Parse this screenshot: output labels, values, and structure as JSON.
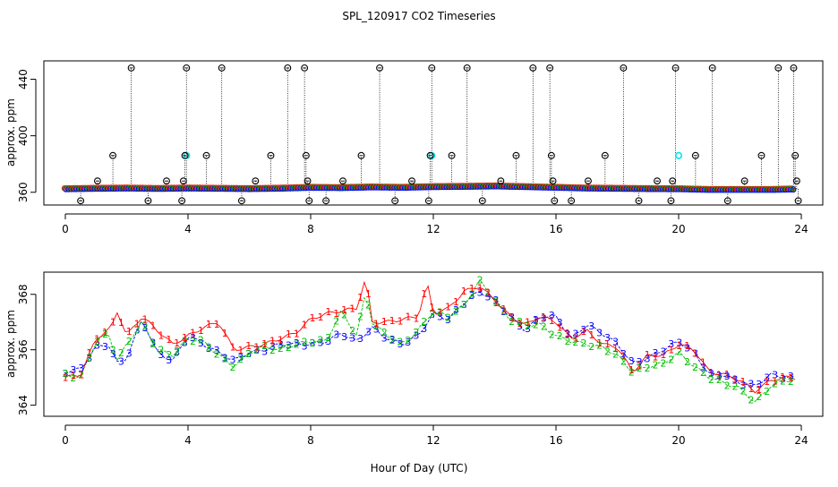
{
  "figure": {
    "title": "SPL_120917  CO2 Timeseries",
    "shared_xlabel": "Hour of Day (UTC)"
  },
  "colors": {
    "series_1": "#ff0000",
    "series_2": "#00c000",
    "series_3": "#0000ff",
    "highlight": "#00e5ee",
    "outlier": "#000000"
  },
  "chart_data": [
    {
      "type": "scatter",
      "name": "top-panel",
      "ylabel": "approx. ppm",
      "xlim": [
        -0.7,
        24.7
      ],
      "ylim": [
        351,
        453
      ],
      "xticks": [
        0,
        4,
        8,
        12,
        16,
        20,
        24
      ],
      "yticks": [
        360,
        400,
        440
      ],
      "grid": false,
      "baseline": [
        [
          0,
          362.5
        ],
        [
          1,
          362.8
        ],
        [
          2,
          363
        ],
        [
          3,
          362.7
        ],
        [
          4,
          363
        ],
        [
          5,
          362.8
        ],
        [
          6,
          362.6
        ],
        [
          7,
          362.9
        ],
        [
          8,
          363.5
        ],
        [
          9,
          363.3
        ],
        [
          10,
          363.8
        ],
        [
          11,
          363.5
        ],
        [
          12,
          364
        ],
        [
          13,
          364.2
        ],
        [
          14,
          364.5
        ],
        [
          15,
          364
        ],
        [
          16,
          363.5
        ],
        [
          17,
          363
        ],
        [
          18,
          362.8
        ],
        [
          19,
          362.6
        ],
        [
          20,
          362.5
        ],
        [
          21,
          362
        ],
        [
          22,
          362
        ],
        [
          23,
          362
        ],
        [
          23.7,
          362.3
        ]
      ],
      "outlier_points": [
        [
          0.5,
          354
        ],
        [
          1.05,
          368
        ],
        [
          1.55,
          386
        ],
        [
          2.15,
          448
        ],
        [
          2.7,
          354
        ],
        [
          3.3,
          368
        ],
        [
          3.8,
          354
        ],
        [
          3.85,
          368
        ],
        [
          3.9,
          386
        ],
        [
          3.95,
          448
        ],
        [
          4.6,
          386
        ],
        [
          5.1,
          448
        ],
        [
          5.75,
          354
        ],
        [
          6.2,
          368
        ],
        [
          6.7,
          386
        ],
        [
          7.25,
          448
        ],
        [
          7.8,
          448
        ],
        [
          7.85,
          386
        ],
        [
          7.9,
          368
        ],
        [
          7.95,
          354
        ],
        [
          8.5,
          354
        ],
        [
          9.05,
          368
        ],
        [
          9.65,
          386
        ],
        [
          10.25,
          448
        ],
        [
          10.75,
          354
        ],
        [
          11.3,
          368
        ],
        [
          11.85,
          354
        ],
        [
          11.9,
          386
        ],
        [
          11.95,
          448
        ],
        [
          12.6,
          386
        ],
        [
          13.1,
          448
        ],
        [
          13.6,
          354
        ],
        [
          14.2,
          368
        ],
        [
          14.7,
          386
        ],
        [
          15.25,
          448
        ],
        [
          15.8,
          448
        ],
        [
          15.85,
          386
        ],
        [
          15.9,
          368
        ],
        [
          15.95,
          354
        ],
        [
          16.5,
          354
        ],
        [
          17.05,
          368
        ],
        [
          17.6,
          386
        ],
        [
          18.2,
          448
        ],
        [
          18.7,
          354
        ],
        [
          19.3,
          368
        ],
        [
          19.75,
          354
        ],
        [
          19.8,
          368
        ],
        [
          19.9,
          448
        ],
        [
          20.55,
          386
        ],
        [
          21.1,
          448
        ],
        [
          21.6,
          354
        ],
        [
          22.15,
          368
        ],
        [
          22.7,
          386
        ],
        [
          23.25,
          448
        ],
        [
          23.75,
          448
        ],
        [
          23.8,
          386
        ],
        [
          23.85,
          368
        ],
        [
          23.9,
          354
        ]
      ],
      "highlight_points": [
        [
          3.95,
          386
        ],
        [
          11.95,
          386
        ],
        [
          20.0,
          386
        ]
      ]
    },
    {
      "type": "line",
      "name": "bottom-panel",
      "ylabel": "approx. ppm",
      "xlim": [
        -0.7,
        24.7
      ],
      "ylim": [
        363.6,
        368.8
      ],
      "xticks": [
        0,
        4,
        8,
        12,
        16,
        20,
        24
      ],
      "yticks": [
        364,
        366,
        368
      ],
      "grid": false,
      "series": [
        {
          "marker": "1",
          "points": [
            [
              0,
              365
            ],
            [
              0.5,
              365.1
            ],
            [
              1,
              366.4
            ],
            [
              1.5,
              366.8
            ],
            [
              1.7,
              367.4
            ],
            [
              2,
              366.5
            ],
            [
              2.5,
              367.2
            ],
            [
              3,
              366.7
            ],
            [
              3.5,
              366.2
            ],
            [
              4,
              366.5
            ],
            [
              4.5,
              366.8
            ],
            [
              5,
              367
            ],
            [
              5.5,
              366
            ],
            [
              6,
              366.1
            ],
            [
              6.5,
              366.2
            ],
            [
              7,
              366.4
            ],
            [
              7.5,
              366.6
            ],
            [
              8,
              367.1
            ],
            [
              8.5,
              367.3
            ],
            [
              9,
              367.4
            ],
            [
              9.5,
              367.5
            ],
            [
              9.8,
              368.6
            ],
            [
              10,
              367
            ],
            [
              10.5,
              367
            ],
            [
              11,
              367.1
            ],
            [
              11.5,
              367.2
            ],
            [
              11.8,
              368.4
            ],
            [
              12,
              367.3
            ],
            [
              12.5,
              367.5
            ],
            [
              13,
              368.1
            ],
            [
              13.5,
              368.3
            ],
            [
              14,
              367.8
            ],
            [
              14.5,
              367.2
            ],
            [
              15,
              366.9
            ],
            [
              15.5,
              367.2
            ],
            [
              16,
              367
            ],
            [
              16.5,
              366.4
            ],
            [
              17,
              366.7
            ],
            [
              17.5,
              366.2
            ],
            [
              18,
              366.1
            ],
            [
              18.5,
              365.2
            ],
            [
              19,
              365.8
            ],
            [
              19.5,
              365.8
            ],
            [
              20,
              366.2
            ],
            [
              20.5,
              366
            ],
            [
              21,
              365.2
            ],
            [
              21.5,
              365.1
            ],
            [
              22,
              364.9
            ],
            [
              22.5,
              364.5
            ],
            [
              23,
              364.9
            ],
            [
              23.5,
              365
            ],
            [
              23.8,
              365
            ]
          ]
        },
        {
          "marker": "2",
          "points": [
            [
              0,
              365.1
            ],
            [
              0.5,
              365
            ],
            [
              1,
              366.3
            ],
            [
              1.4,
              366.6
            ],
            [
              1.7,
              365.6
            ],
            [
              2,
              366.2
            ],
            [
              2.5,
              367
            ],
            [
              3,
              366
            ],
            [
              3.5,
              365.8
            ],
            [
              4,
              366.4
            ],
            [
              4.5,
              366.3
            ],
            [
              5,
              365.8
            ],
            [
              5.5,
              365.4
            ],
            [
              6,
              365.9
            ],
            [
              6.5,
              366.1
            ],
            [
              7,
              366
            ],
            [
              7.5,
              366.2
            ],
            [
              8,
              366.3
            ],
            [
              8.5,
              366.3
            ],
            [
              9,
              367.4
            ],
            [
              9.5,
              366.5
            ],
            [
              9.8,
              368.1
            ],
            [
              10,
              367
            ],
            [
              10.5,
              366.5
            ],
            [
              11,
              366.2
            ],
            [
              11.5,
              366.7
            ],
            [
              12,
              367.4
            ],
            [
              12.5,
              367.2
            ],
            [
              13,
              367.6
            ],
            [
              13.5,
              368.5
            ],
            [
              14,
              367.8
            ],
            [
              14.5,
              367.1
            ],
            [
              15,
              366.9
            ],
            [
              15.5,
              366.9
            ],
            [
              16,
              366.5
            ],
            [
              16.5,
              366.3
            ],
            [
              17,
              366.2
            ],
            [
              17.5,
              366.1
            ],
            [
              18,
              365.8
            ],
            [
              18.5,
              365.2
            ],
            [
              19,
              365.4
            ],
            [
              19.5,
              365.5
            ],
            [
              20,
              365.9
            ],
            [
              20.5,
              365.4
            ],
            [
              21,
              365
            ],
            [
              21.5,
              364.8
            ],
            [
              22,
              364.6
            ],
            [
              22.5,
              364.1
            ],
            [
              23,
              364.7
            ],
            [
              23.5,
              364.9
            ],
            [
              23.8,
              364.9
            ]
          ]
        },
        {
          "marker": "3",
          "points": [
            [
              0,
              365.2
            ],
            [
              0.5,
              365.3
            ],
            [
              1,
              366.1
            ],
            [
              1.4,
              366.2
            ],
            [
              1.7,
              365.5
            ],
            [
              2,
              365.7
            ],
            [
              2.5,
              367.1
            ],
            [
              3,
              365.9
            ],
            [
              3.5,
              365.6
            ],
            [
              4,
              366.5
            ],
            [
              4.5,
              366.2
            ],
            [
              5,
              365.9
            ],
            [
              5.5,
              365.6
            ],
            [
              6,
              365.9
            ],
            [
              6.5,
              366
            ],
            [
              7,
              366.2
            ],
            [
              7.5,
              366.2
            ],
            [
              8,
              366.2
            ],
            [
              8.5,
              366.3
            ],
            [
              9,
              366.6
            ],
            [
              9.5,
              366.3
            ],
            [
              10,
              366.8
            ],
            [
              10.5,
              366.4
            ],
            [
              11,
              366.2
            ],
            [
              11.5,
              366.5
            ],
            [
              12,
              367.3
            ],
            [
              12.5,
              367.1
            ],
            [
              13,
              367.7
            ],
            [
              13.5,
              368.1
            ],
            [
              14,
              367.8
            ],
            [
              14.5,
              367.2
            ],
            [
              15,
              366.7
            ],
            [
              15.5,
              367.2
            ],
            [
              16,
              367.2
            ],
            [
              16.5,
              366.4
            ],
            [
              17,
              366.9
            ],
            [
              17.5,
              366.6
            ],
            [
              18,
              366.2
            ],
            [
              18.5,
              365.5
            ],
            [
              19,
              365.7
            ],
            [
              19.5,
              366
            ],
            [
              20,
              366.3
            ],
            [
              20.5,
              365.9
            ],
            [
              21,
              365.1
            ],
            [
              21.5,
              365.1
            ],
            [
              22,
              364.8
            ],
            [
              22.5,
              364.7
            ],
            [
              23,
              365.1
            ],
            [
              23.5,
              365
            ],
            [
              23.8,
              365
            ]
          ]
        }
      ]
    }
  ]
}
